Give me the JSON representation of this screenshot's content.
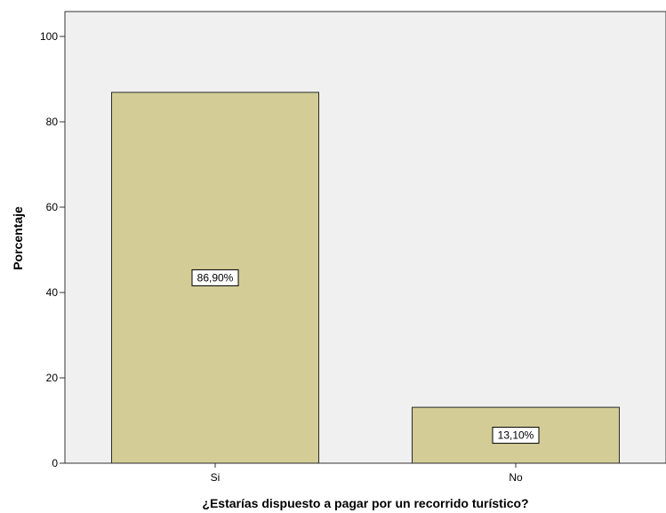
{
  "chart_data": {
    "type": "bar",
    "categories": [
      "Si",
      "No"
    ],
    "values": [
      86.9,
      13.1
    ],
    "data_labels": [
      "86,90%",
      "13,10%"
    ],
    "xlabel": "¿Estarías dispuesto a pagar por un recorrido turístico?",
    "ylabel": "Porcentaje",
    "ylim": [
      0,
      100
    ],
    "yticks": [
      0,
      20,
      40,
      60,
      80,
      100
    ],
    "grid": false,
    "colors": {
      "bar_fill": "#d3cc96",
      "bar_stroke": "#2b2b2b",
      "plot_background": "#f0f0f0",
      "axis": "#333333"
    }
  }
}
